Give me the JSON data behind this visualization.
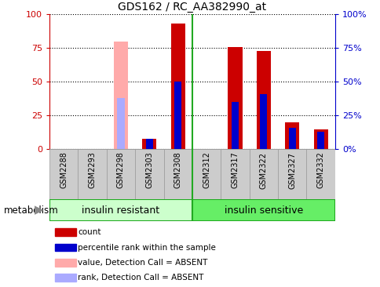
{
  "title": "GDS162 / RC_AA382990_at",
  "categories": [
    "GSM2288",
    "GSM2293",
    "GSM2298",
    "GSM2303",
    "GSM2308",
    "GSM2312",
    "GSM2317",
    "GSM2322",
    "GSM2327",
    "GSM2332"
  ],
  "red_values": [
    0,
    0,
    0,
    8,
    93,
    0,
    76,
    73,
    20,
    15
  ],
  "blue_values": [
    0,
    0,
    38,
    8,
    50,
    0,
    35,
    41,
    16,
    13
  ],
  "pink_values": [
    0,
    0,
    80,
    0,
    0,
    0,
    0,
    0,
    0,
    0
  ],
  "lightblue_values": [
    0,
    0,
    38,
    0,
    0,
    0,
    0,
    0,
    0,
    0
  ],
  "absent_mask": [
    false,
    false,
    true,
    false,
    false,
    false,
    false,
    false,
    false,
    false
  ],
  "group1_label": "insulin resistant",
  "group2_label": "insulin sensitive",
  "group1_indices": [
    0,
    1,
    2,
    3,
    4
  ],
  "group2_indices": [
    5,
    6,
    7,
    8,
    9
  ],
  "legend_items": [
    "count",
    "percentile rank within the sample",
    "value, Detection Call = ABSENT",
    "rank, Detection Call = ABSENT"
  ],
  "legend_colors": [
    "#cc0000",
    "#0000cc",
    "#ffaaaa",
    "#aaaaff"
  ],
  "ylim": [
    0,
    100
  ],
  "yticks": [
    0,
    25,
    50,
    75,
    100
  ],
  "yticklabels_left": [
    "0",
    "25",
    "50",
    "75",
    "100"
  ],
  "yticklabels_right": [
    "0%",
    "25%",
    "50%",
    "75%",
    "100%"
  ],
  "bar_width": 0.5,
  "blue_bar_width": 0.25,
  "group_bg1": "#ccffcc",
  "group_bg2": "#66ee66",
  "group_border": "#22aa22",
  "metabolism_label": "metabolism",
  "left_color": "#cc0000",
  "right_color": "#0000cc",
  "xtick_bg": "#cccccc",
  "xtick_border": "#999999",
  "separator_color": "#22aa22",
  "plot_bg": "#ffffff"
}
